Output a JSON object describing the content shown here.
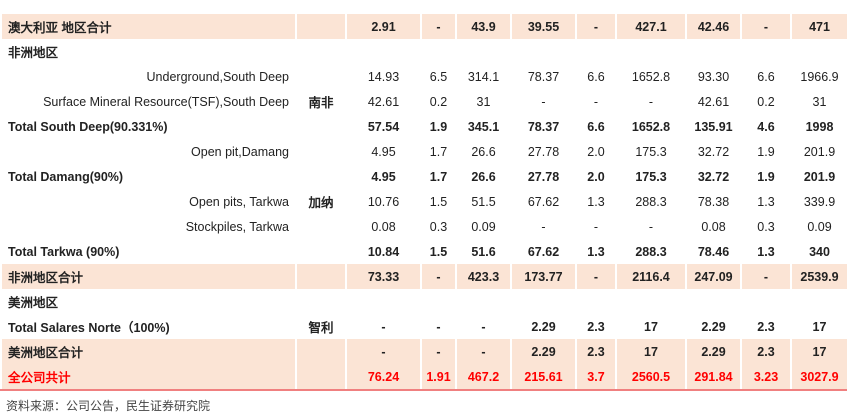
{
  "rows": [
    {
      "label": "澳大利亚 地区合计",
      "region": "",
      "values": [
        "2.91",
        "-",
        "43.9",
        "39.55",
        "-",
        "427.1",
        "42.46",
        "-",
        "471"
      ],
      "style": "hl b"
    },
    {
      "label": "非洲地区",
      "region": "",
      "values": [
        "",
        "",
        "",
        "",
        "",
        "",
        "",
        "",
        ""
      ],
      "style": "b"
    },
    {
      "label": "Underground,South Deep",
      "region": "",
      "values": [
        "14.93",
        "6.5",
        "314.1",
        "78.37",
        "6.6",
        "1652.8",
        "93.30",
        "6.6",
        "1966.9"
      ],
      "style": "ind"
    },
    {
      "label": "Surface Mineral Resource(TSF),South Deep",
      "region": "南非",
      "values": [
        "42.61",
        "0.2",
        "31",
        "-",
        "-",
        "-",
        "42.61",
        "0.2",
        "31"
      ],
      "style": "ind"
    },
    {
      "label": "Total South Deep(90.331%)",
      "region": "",
      "values": [
        "57.54",
        "1.9",
        "345.1",
        "78.37",
        "6.6",
        "1652.8",
        "135.91",
        "4.6",
        "1998"
      ],
      "style": "b"
    },
    {
      "label": "Open pit,Damang",
      "region": "",
      "values": [
        "4.95",
        "1.7",
        "26.6",
        "27.78",
        "2.0",
        "175.3",
        "32.72",
        "1.9",
        "201.9"
      ],
      "style": "ind"
    },
    {
      "label": "Total Damang(90%)",
      "region": "",
      "values": [
        "4.95",
        "1.7",
        "26.6",
        "27.78",
        "2.0",
        "175.3",
        "32.72",
        "1.9",
        "201.9"
      ],
      "style": "b"
    },
    {
      "label": "Open pits, Tarkwa",
      "region": "加纳",
      "values": [
        "10.76",
        "1.5",
        "51.5",
        "67.62",
        "1.3",
        "288.3",
        "78.38",
        "1.3",
        "339.9"
      ],
      "style": "ind"
    },
    {
      "label": "Stockpiles, Tarkwa",
      "region": "",
      "values": [
        "0.08",
        "0.3",
        "0.09",
        "-",
        "-",
        "-",
        "0.08",
        "0.3",
        "0.09"
      ],
      "style": "ind"
    },
    {
      "label": "Total Tarkwa (90%)",
      "region": "",
      "values": [
        "10.84",
        "1.5",
        "51.6",
        "67.62",
        "1.3",
        "288.3",
        "78.46",
        "1.3",
        "340"
      ],
      "style": "b"
    },
    {
      "label": "非洲地区合计",
      "region": "",
      "values": [
        "73.33",
        "-",
        "423.3",
        "173.77",
        "-",
        "2116.4",
        "247.09",
        "-",
        "2539.9"
      ],
      "style": "hl b"
    },
    {
      "label": "美洲地区",
      "region": "",
      "values": [
        "",
        "",
        "",
        "",
        "",
        "",
        "",
        "",
        ""
      ],
      "style": "b"
    },
    {
      "label": "Total Salares Norte（100%)",
      "region": "智利",
      "values": [
        "-",
        "-",
        "-",
        "2.29",
        "2.3",
        "17",
        "2.29",
        "2.3",
        "17"
      ],
      "style": "b"
    },
    {
      "label": "美洲地区合计",
      "region": "",
      "values": [
        "-",
        "-",
        "-",
        "2.29",
        "2.3",
        "17",
        "2.29",
        "2.3",
        "17"
      ],
      "style": "hl b"
    },
    {
      "label": "全公司共计",
      "region": "",
      "values": [
        "76.24",
        "1.91",
        "467.2",
        "215.61",
        "3.7",
        "2560.5",
        "291.84",
        "3.23",
        "3027.9"
      ],
      "style": "red"
    }
  ],
  "source": "资料来源：公司公告，民生证券研究院",
  "colors": {
    "highlight": "#fbe4d5",
    "total": "#ff0000"
  }
}
